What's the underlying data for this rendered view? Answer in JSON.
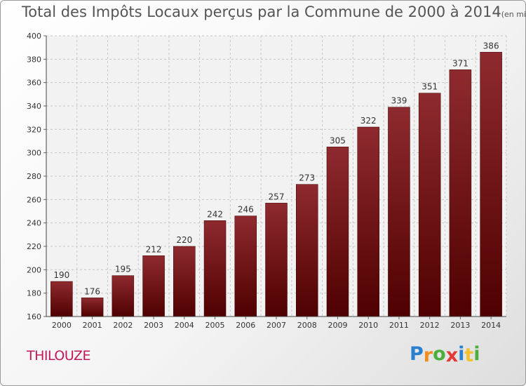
{
  "chart_data": {
    "type": "bar",
    "title": "Total des Impôts Locaux perçus par la Commune de 2000 à 2014",
    "title_unit": "(en milliers d'€)",
    "categories": [
      "2000",
      "2001",
      "2002",
      "2003",
      "2004",
      "2005",
      "2006",
      "2007",
      "2008",
      "2009",
      "2010",
      "2011",
      "2012",
      "2013",
      "2014"
    ],
    "values": [
      190,
      176,
      195,
      212,
      220,
      242,
      246,
      257,
      273,
      305,
      322,
      339,
      351,
      371,
      386
    ],
    "ylim": [
      160,
      400
    ],
    "yticks": [
      160,
      180,
      200,
      220,
      240,
      260,
      280,
      300,
      320,
      340,
      360,
      380,
      400
    ],
    "grid": true,
    "bar_color": "#7a1a1f"
  },
  "footer": {
    "commune": "THILOUZE",
    "logo_letters": [
      {
        "ch": "P",
        "color": "#2a7fd0"
      },
      {
        "ch": "r",
        "color": "#f28c1e"
      },
      {
        "ch": "o",
        "color": "#4caf3c"
      },
      {
        "ch": "x",
        "color": "#e53935"
      },
      {
        "ch": "i",
        "color": "#2a7fd0"
      },
      {
        "ch": "t",
        "color": "#f2c12e"
      },
      {
        "ch": "i",
        "color": "#4caf3c"
      }
    ]
  }
}
